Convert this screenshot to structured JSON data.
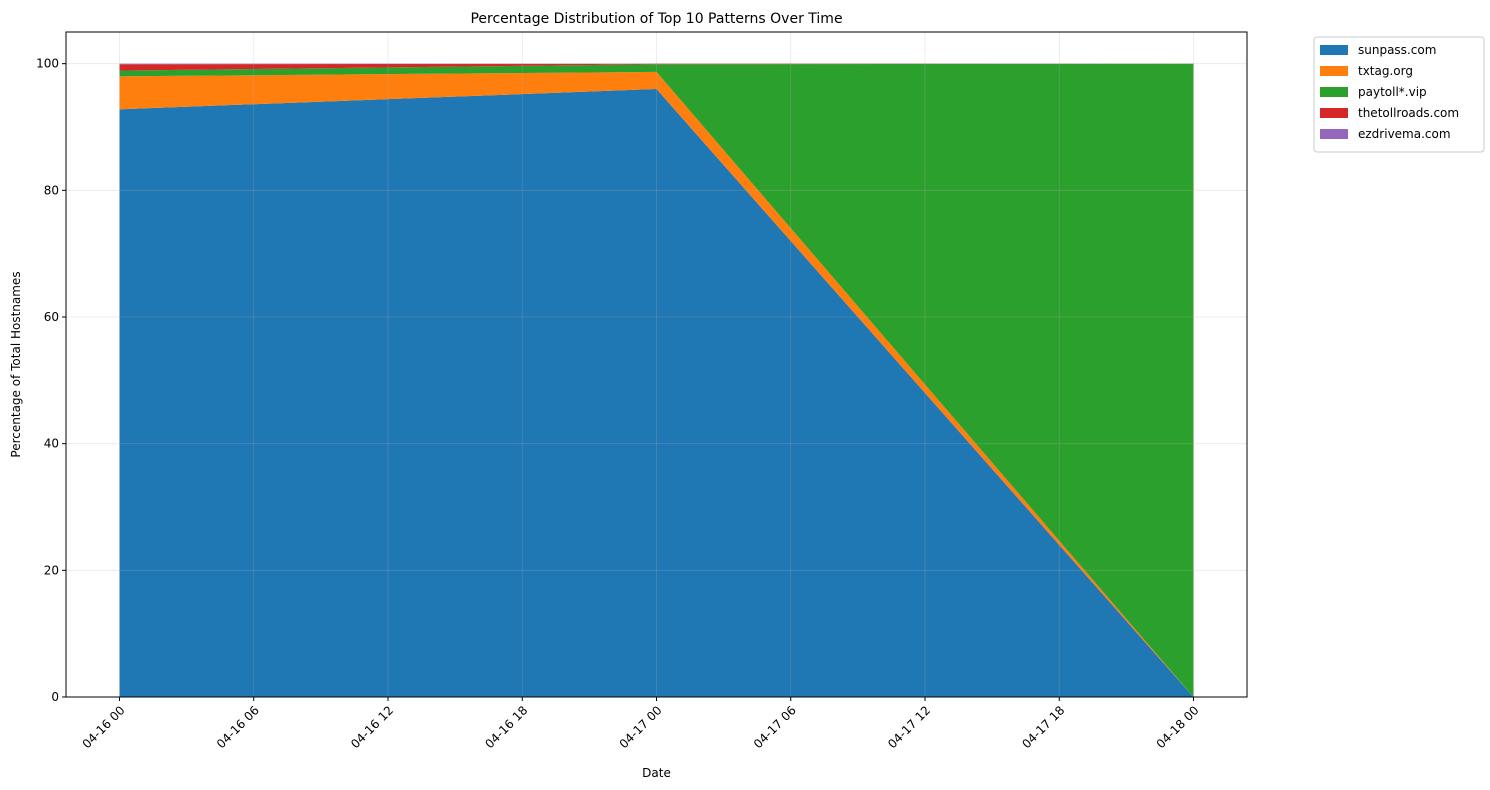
{
  "chart_data": {
    "type": "area",
    "stacked": true,
    "title": "Percentage Distribution of Top 10 Patterns Over Time",
    "xlabel": "Date",
    "ylabel": "Percentage of Total Hostnames",
    "x": [
      "04-16 00",
      "04-17 00",
      "04-18 00"
    ],
    "x_ticks": [
      "04-16 00",
      "04-16 06",
      "04-16 12",
      "04-16 18",
      "04-17 00",
      "04-17 06",
      "04-17 12",
      "04-17 18",
      "04-18 00"
    ],
    "y_ticks": [
      0,
      20,
      40,
      60,
      80,
      100
    ],
    "ylim": [
      0,
      105
    ],
    "grid": true,
    "legend_position": "outside-top-right",
    "series": [
      {
        "name": "sunpass.com",
        "color": "#1f77b4",
        "values": [
          92.8,
          96.0,
          0.0
        ]
      },
      {
        "name": "txtag.org",
        "color": "#ff7f0e",
        "values": [
          5.2,
          2.7,
          0.0
        ]
      },
      {
        "name": "paytoll*.vip",
        "color": "#2ca02c",
        "values": [
          0.9,
          1.2,
          100.0
        ]
      },
      {
        "name": "thetollroads.com",
        "color": "#d62728",
        "values": [
          1.0,
          0.1,
          0.0
        ]
      },
      {
        "name": "ezdrivema.com",
        "color": "#9467bd",
        "values": [
          0.1,
          0.0,
          0.0
        ]
      }
    ]
  }
}
